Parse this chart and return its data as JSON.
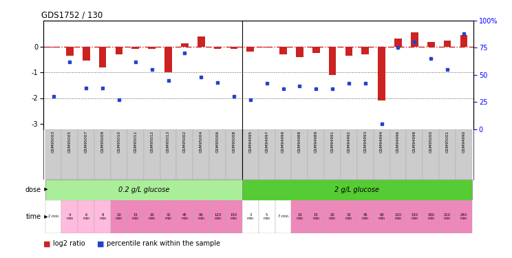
{
  "title": "GDS1752 / 130",
  "samples": [
    "GSM95003",
    "GSM95005",
    "GSM95007",
    "GSM95009",
    "GSM95010",
    "GSM95011",
    "GSM95012",
    "GSM95013",
    "GSM95002",
    "GSM95004",
    "GSM95006",
    "GSM95008",
    "GSM94995",
    "GSM94997",
    "GSM94999",
    "GSM94988",
    "GSM94989",
    "GSM94991",
    "GSM94992",
    "GSM94993",
    "GSM94994",
    "GSM94996",
    "GSM94998",
    "GSM95000",
    "GSM95001",
    "GSM94990"
  ],
  "log2_ratio": [
    -0.05,
    -0.35,
    -0.55,
    -0.8,
    -0.3,
    -0.1,
    -0.08,
    -1.0,
    0.12,
    0.38,
    -0.1,
    -0.1,
    -0.2,
    -0.05,
    -0.3,
    -0.4,
    -0.25,
    -1.1,
    -0.35,
    -0.3,
    -2.1,
    0.3,
    0.55,
    0.18,
    0.22,
    0.45
  ],
  "percentile_rank": [
    30,
    62,
    38,
    38,
    27,
    62,
    55,
    45,
    70,
    48,
    43,
    30,
    27,
    42,
    37,
    40,
    37,
    37,
    42,
    42,
    5,
    75,
    80,
    65,
    55,
    88
  ],
  "dose_groups": [
    {
      "label": "0.2 g/L glucose",
      "start": 0,
      "end": 12,
      "color": "#aaee99"
    },
    {
      "label": "2 g/L glucose",
      "start": 12,
      "end": 26,
      "color": "#55cc33"
    }
  ],
  "time_labels": [
    "2 min",
    "4\nmin",
    "6\nmin",
    "8\nmin",
    "10\nmin",
    "15\nmin",
    "20\nmin",
    "30\nmin",
    "45\nmin",
    "90\nmin",
    "120\nmin",
    "150\nmin",
    "3\nmin",
    "5\nmin",
    "7 min",
    "10\nmin",
    "15\nmin",
    "20\nmin",
    "30\nmin",
    "45\nmin",
    "90\nmin",
    "120\nmin",
    "150\nmin",
    "180\nmin",
    "210\nmin",
    "240\nmin"
  ],
  "time_colors": [
    "#ffffff",
    "#ffbbdd",
    "#ffbbdd",
    "#ffbbdd",
    "#ee88bb",
    "#ee88bb",
    "#ee88bb",
    "#ee88bb",
    "#ee88bb",
    "#ee88bb",
    "#ee88bb",
    "#ee88bb",
    "#ffffff",
    "#ffffff",
    "#ffffff",
    "#ee88bb",
    "#ee88bb",
    "#ee88bb",
    "#ee88bb",
    "#ee88bb",
    "#ee88bb",
    "#ee88bb",
    "#ee88bb",
    "#ee88bb",
    "#ee88bb",
    "#ee88bb"
  ],
  "ylim_left": [
    -3.2,
    1.0
  ],
  "ylim_right": [
    0,
    100
  ],
  "yticks_left": [
    0,
    -1,
    -2,
    -3
  ],
  "yticks_right": [
    100,
    75,
    50,
    25,
    0
  ],
  "bar_color": "#cc2222",
  "dot_color": "#2244cc",
  "ref_line_color": "#cc2222",
  "grid_line_color": "#555555",
  "separator_col": 11,
  "n_samples_group1": 12
}
